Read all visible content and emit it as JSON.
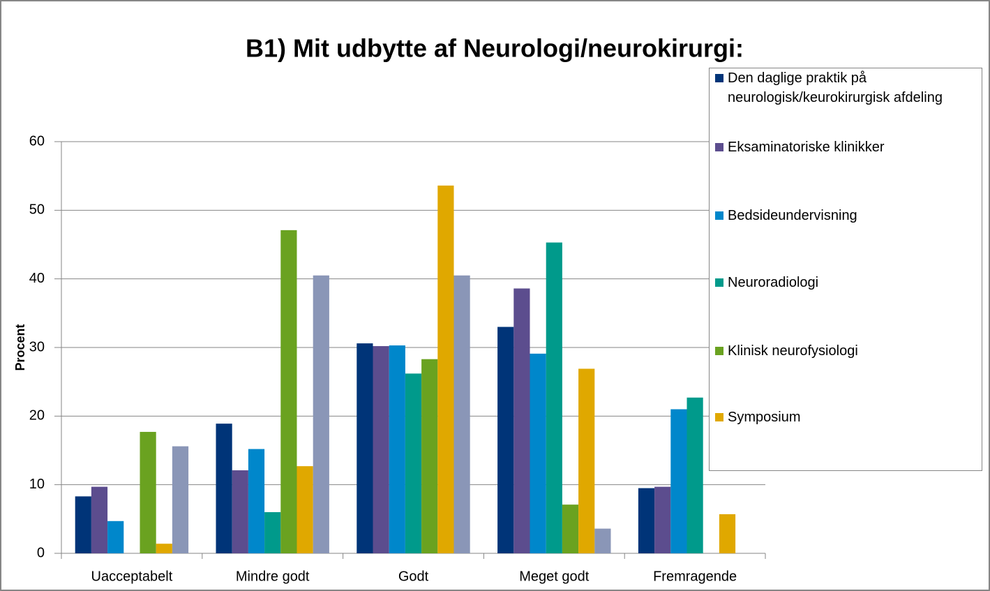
{
  "chart_data": {
    "type": "bar",
    "title": "B1) Mit udbytte af Neurologi/neurokirurgi:",
    "y_label": "Procent",
    "categories": [
      "Uacceptabelt",
      "Mindre godt",
      "Godt",
      "Meget godt",
      "Fremragende"
    ],
    "series": [
      {
        "name": "Den daglige praktik på neurologisk/keurokirurgisk afdeling",
        "color": "#003478",
        "values": [
          8.3,
          18.9,
          30.6,
          33.0,
          9.5
        ]
      },
      {
        "name": "Eksaminatoriske klinikker",
        "color": "#5c4d8e",
        "values": [
          9.7,
          12.1,
          30.2,
          38.6,
          9.7
        ]
      },
      {
        "name": "Bedsideundervisning",
        "color": "#0087cb",
        "values": [
          4.7,
          15.2,
          30.3,
          29.1,
          21.0
        ]
      },
      {
        "name": "Neuroradiologi",
        "color": "#009a8b",
        "values": [
          0,
          6.0,
          26.2,
          45.3,
          22.7
        ]
      },
      {
        "name": "Klinisk neurofysiologi",
        "color": "#6aa220",
        "values": [
          17.7,
          47.1,
          28.3,
          7.1,
          0
        ]
      },
      {
        "name": "Symposium",
        "color": "#e0a800",
        "values": [
          1.4,
          12.7,
          53.6,
          26.9,
          5.7
        ]
      },
      {
        "color": "#8a96b7",
        "values": [
          15.6,
          40.5,
          40.5,
          3.6,
          0
        ]
      }
    ],
    "ylim": [
      0,
      60
    ],
    "yticks": [
      0,
      10,
      20,
      30,
      40,
      50,
      60
    ],
    "grid": true,
    "legend": "right"
  }
}
